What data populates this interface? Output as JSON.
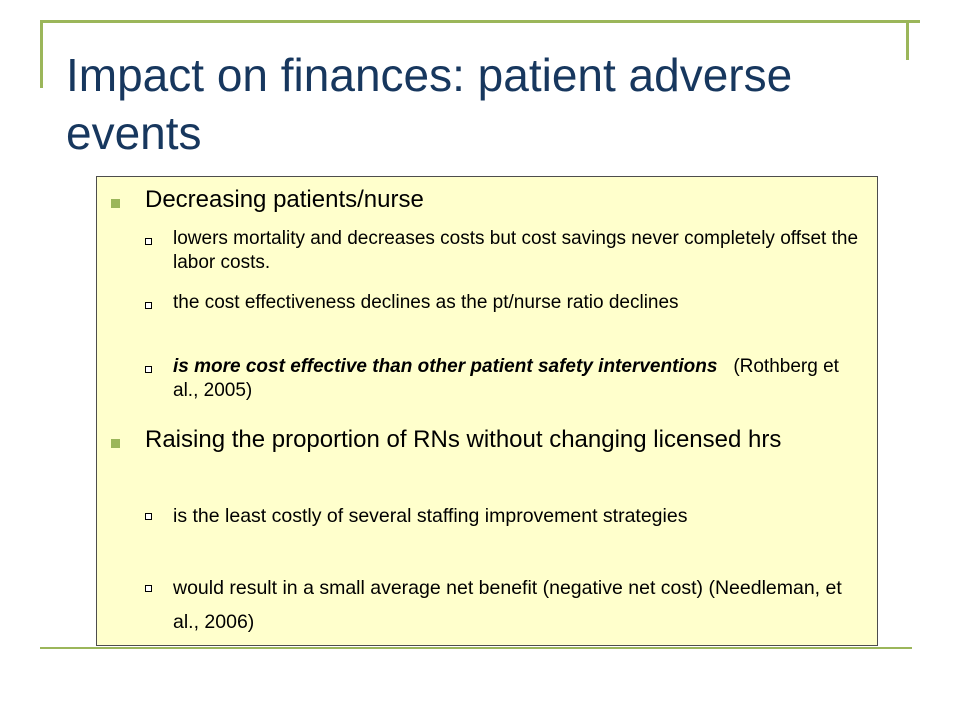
{
  "slide": {
    "title": "Impact on finances: patient adverse events",
    "colors": {
      "title": "#17375e",
      "accent": "#9bb65a",
      "box_background": "#ffffcc"
    },
    "bullets": [
      {
        "text": "Decreasing patients/nurse",
        "sub": [
          {
            "text": "lowers mortality and decreases costs but cost savings never completely offset the labor costs."
          },
          {
            "text": "the cost effectiveness declines as the pt/nurse ratio declines"
          },
          {
            "emphasis": "is more cost effective than other patient safety interventions",
            "citation": "(Rothberg et al., 2005)"
          }
        ]
      },
      {
        "text": "Raising the proportion of RNs without changing licensed hrs",
        "sub": [
          {
            "text": "is the least costly of several staffing improvement strategies"
          },
          {
            "text": "would result in a small average net benefit (negative net cost) (Needleman, et al., 2006)"
          }
        ]
      }
    ]
  }
}
